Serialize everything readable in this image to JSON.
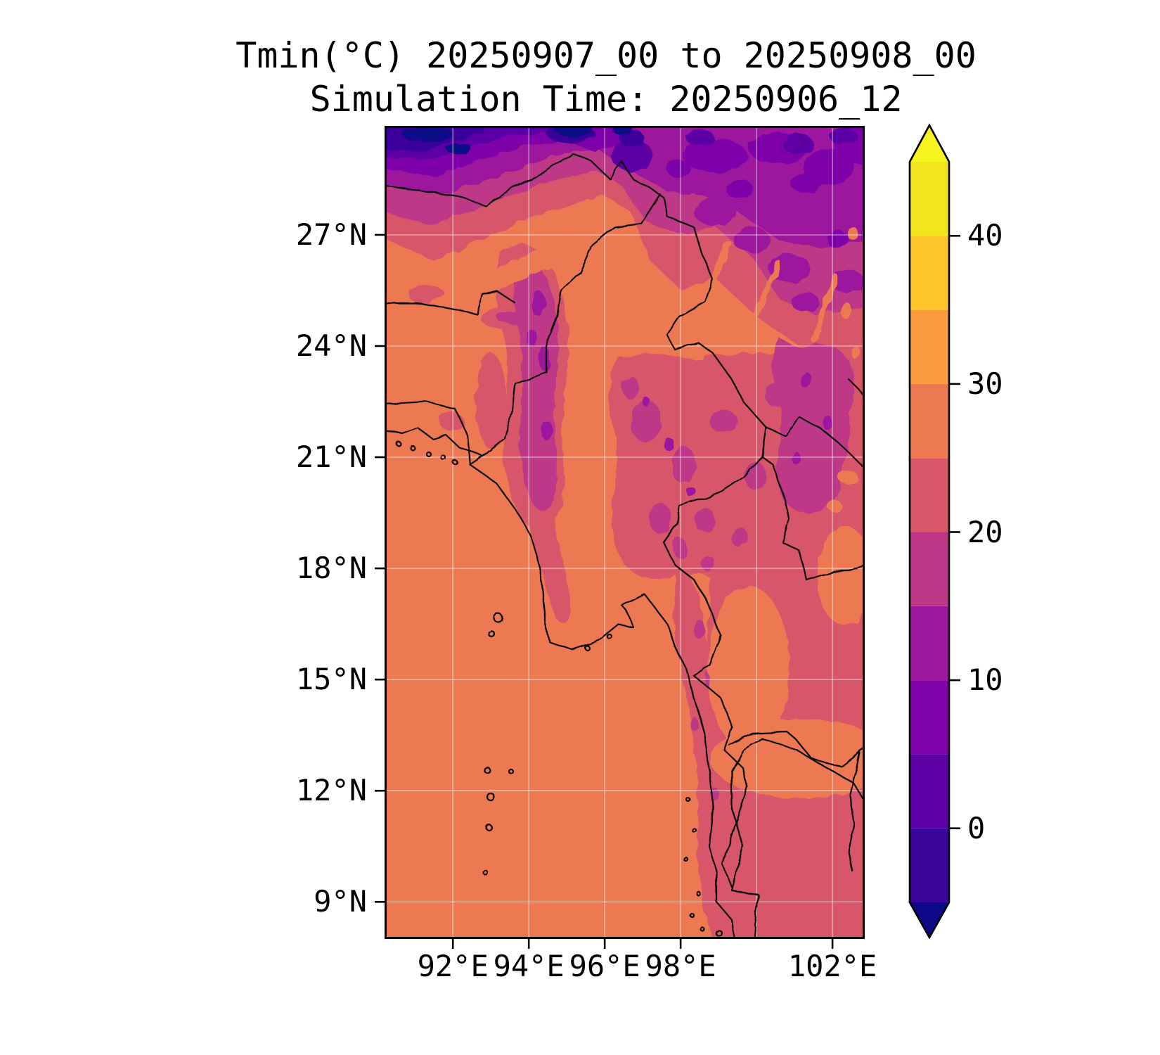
{
  "title": {
    "line1": "Tmin(°C) 20250907_00 to 20250908_00",
    "line2": "Simulation Time: 20250906_12"
  },
  "chart_data": {
    "type": "heatmap",
    "title": "Tmin(°C) 20250907_00 to 20250908_00",
    "subtitle": "Simulation Time: 20250906_12",
    "variable": "Tmin",
    "units": "°C",
    "valid_period_start": "20250907_00",
    "valid_period_end": "20250908_00",
    "simulation_time": "20250906_12",
    "grid_on": true,
    "x_axis": {
      "range": [
        90.2,
        102.85
      ],
      "gridlines": [
        92,
        94,
        96,
        98,
        100,
        102
      ],
      "ticks": [
        {
          "value": 92,
          "label": "92°E"
        },
        {
          "value": 94,
          "label": "94°E"
        },
        {
          "value": 96,
          "label": "96°E"
        },
        {
          "value": 98,
          "label": "98°E"
        },
        {
          "value": 102,
          "label": "102°E"
        }
      ]
    },
    "y_axis": {
      "range": [
        8.0,
        29.94
      ],
      "gridlines": [
        9,
        12,
        15,
        18,
        21,
        24,
        27
      ],
      "ticks": [
        {
          "value": 27,
          "label": "27°N"
        },
        {
          "value": 24,
          "label": "24°N"
        },
        {
          "value": 21,
          "label": "21°N"
        },
        {
          "value": 18,
          "label": "18°N"
        },
        {
          "value": 15,
          "label": "15°N"
        },
        {
          "value": 12,
          "label": "12°N"
        },
        {
          "value": 9,
          "label": "9°N"
        }
      ]
    },
    "colorbar": {
      "orientation": "vertical",
      "extend": "both",
      "levels": [
        -5,
        0,
        5,
        10,
        15,
        20,
        25,
        30,
        35,
        40,
        45
      ],
      "ticks": [
        {
          "value": 40,
          "label": "40"
        },
        {
          "value": 30,
          "label": "30"
        },
        {
          "value": 20,
          "label": "20"
        },
        {
          "value": 10,
          "label": "10"
        },
        {
          "value": 0,
          "label": "0"
        }
      ],
      "colors": [
        "#3a049a",
        "#5c01a6",
        "#7e03a8",
        "#9c179e",
        "#bd3786",
        "#d8576b",
        "#ed7953",
        "#fa9b3d",
        "#fdc527",
        "#f1e51d"
      ],
      "under": "#0d0887",
      "over": "#f6f520"
    },
    "sampled_values": [
      {
        "lon": 91,
        "lat": 29.5,
        "tmin_band": "< -5"
      },
      {
        "lon": 93,
        "lat": 29,
        "tmin_band": "0 to 5"
      },
      {
        "lon": 96.5,
        "lat": 29.3,
        "tmin_band": "-5 to 0"
      },
      {
        "lon": 99,
        "lat": 29,
        "tmin_band": "5 to 10"
      },
      {
        "lon": 102,
        "lat": 28.5,
        "tmin_band": "10 to 15"
      },
      {
        "lon": 91,
        "lat": 26,
        "tmin_band": "25 to 30"
      },
      {
        "lon": 94,
        "lat": 26,
        "tmin_band": "20 to 25"
      },
      {
        "lon": 97,
        "lat": 26,
        "tmin_band": "15 to 20"
      },
      {
        "lon": 100,
        "lat": 25,
        "tmin_band": "15 to 20"
      },
      {
        "lon": 94.3,
        "lat": 23,
        "tmin_band": "15 to 20"
      },
      {
        "lon": 92,
        "lat": 23,
        "tmin_band": "25 to 30"
      },
      {
        "lon": 96,
        "lat": 22,
        "tmin_band": "25 to 30"
      },
      {
        "lon": 98.5,
        "lat": 21,
        "tmin_band": "20 to 25"
      },
      {
        "lon": 101,
        "lat": 20,
        "tmin_band": "20 to 25"
      },
      {
        "lon": 93,
        "lat": 18,
        "tmin_band": "25 to 30"
      },
      {
        "lon": 97,
        "lat": 17,
        "tmin_band": "20 to 25"
      },
      {
        "lon": 100,
        "lat": 15,
        "tmin_band": "25 to 30"
      },
      {
        "lon": 99,
        "lat": 12,
        "tmin_band": "20 to 25"
      },
      {
        "lon": 95,
        "lat": 10,
        "tmin_band": "25 to 30"
      },
      {
        "lon": 101,
        "lat": 10,
        "tmin_band": "20 to 25"
      }
    ]
  }
}
